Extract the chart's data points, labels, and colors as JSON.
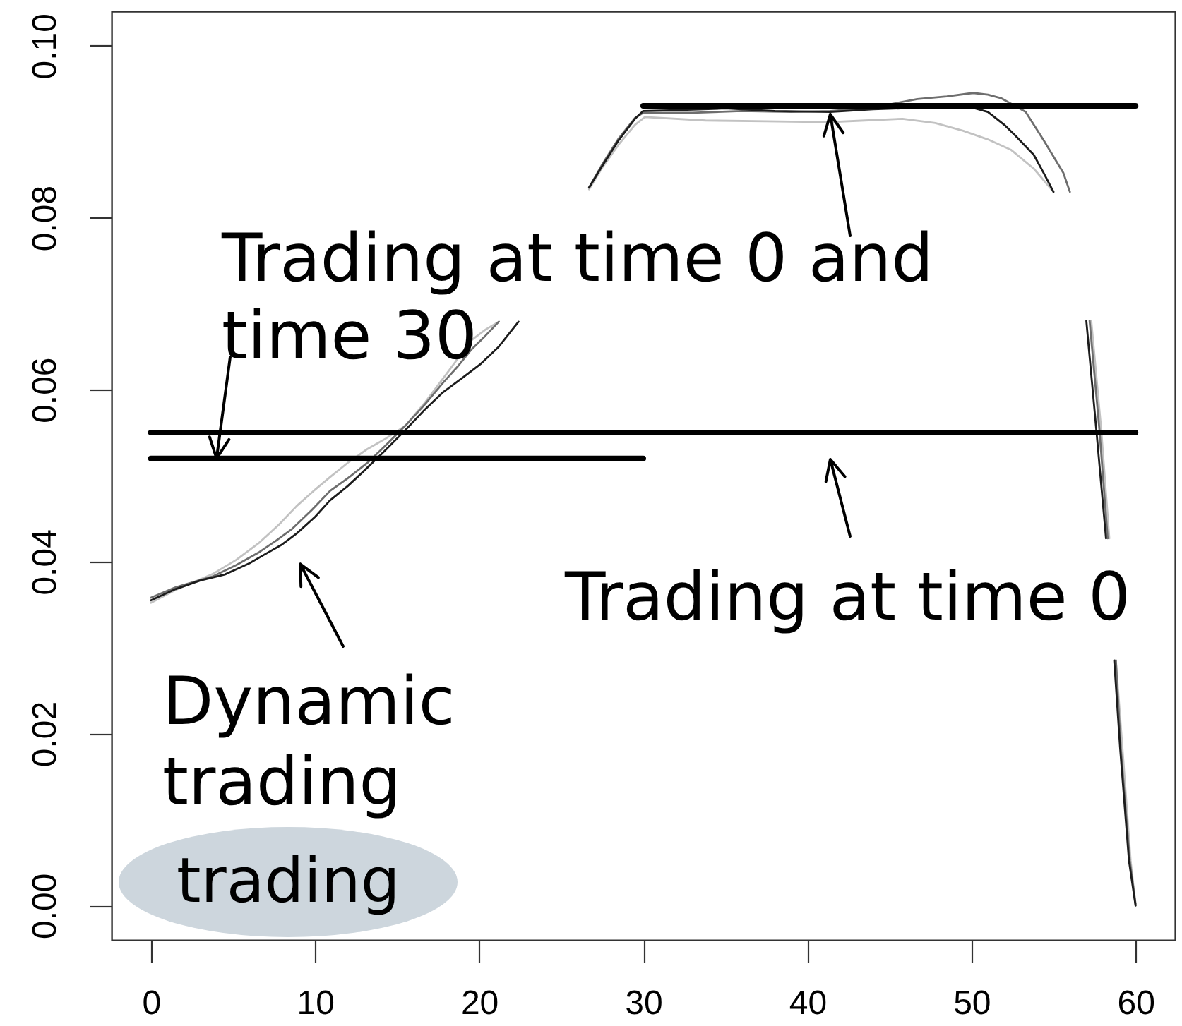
{
  "chart_data": {
    "type": "line",
    "xlim": [
      -2.4,
      62.4
    ],
    "ylim": [
      -0.004,
      0.104
    ],
    "xticks": [
      0,
      10,
      20,
      30,
      40,
      50,
      60
    ],
    "yticks": [
      {
        "value": 0,
        "label": "0.00"
      },
      0.02,
      0.04,
      0.06,
      0.08,
      {
        "value": 0.1,
        "label": "0.10"
      }
    ],
    "series": [
      {
        "color": "#c2c2c2",
        "x": [
          0,
          1.5,
          3.8,
          5.2,
          6.6,
          7.8,
          8.9,
          9.9,
          10.9,
          12,
          13.2,
          14.3,
          15.5,
          16.7,
          17.8,
          18.7,
          19.5,
          20.4,
          21.2,
          24,
          26.7,
          27.5,
          28.5,
          29.5,
          30.1,
          33.8,
          37.5,
          41.3,
          43.5,
          45.8,
          47.8,
          49.5,
          51,
          52.4,
          53.8,
          55,
          56,
          57.3,
          57.9,
          58.4,
          58.6,
          58.8,
          59.2,
          59.7,
          60
        ],
        "values": [
          0.0352,
          0.0367,
          0.0386,
          0.0402,
          0.0422,
          0.0443,
          0.0465,
          0.0482,
          0.0498,
          0.0515,
          0.0531,
          0.0543,
          0.0558,
          0.0585,
          0.0613,
          0.0636,
          0.0657,
          0.067,
          0.0679,
          null,
          0.0833,
          0.0858,
          0.0885,
          0.0908,
          0.0917,
          0.0913,
          0.0912,
          0.0911,
          0.0913,
          0.0915,
          0.091,
          0.0901,
          0.0891,
          0.0879,
          0.0857,
          0.083,
          null,
          0.068,
          0.0555,
          0.0427,
          null,
          0.0285,
          0.0183,
          0.0052,
          0
        ]
      },
      {
        "color": "#6e6e6e",
        "x": [
          0,
          1.5,
          3.8,
          5.2,
          6.6,
          7.6,
          8.6,
          9.8,
          10.9,
          12,
          13.2,
          14.3,
          15.5,
          16.7,
          17.8,
          18.7,
          19.5,
          20.4,
          21.2,
          24,
          26.7,
          27.5,
          28.5,
          29.5,
          30,
          33,
          36,
          39,
          41.4,
          44,
          46.7,
          48.5,
          50.1,
          51,
          51.8,
          53.3,
          54.4,
          55.6,
          56,
          56.5,
          57.2,
          57.8,
          58.3,
          58.5,
          58.8,
          59.1,
          59.65,
          60
        ],
        "values": [
          0.0358,
          0.037,
          0.0383,
          0.0396,
          0.0411,
          0.0424,
          0.0438,
          0.046,
          0.0482,
          0.0497,
          0.0515,
          0.0535,
          0.0558,
          0.0583,
          0.0608,
          0.0627,
          0.0646,
          0.0663,
          0.0679,
          null,
          0.0835,
          0.0862,
          0.0892,
          0.0916,
          0.0922,
          0.0922,
          0.0924,
          0.0923,
          0.0924,
          0.0928,
          0.0938,
          0.0941,
          0.0945,
          0.0943,
          0.0939,
          0.0923,
          0.089,
          0.0852,
          0.083,
          null,
          0.068,
          0.0553,
          0.0427,
          null,
          0.0285,
          0.0183,
          0.0052,
          0.0002
        ]
      },
      {
        "color": "#1c1c1c",
        "x": [
          0,
          1.5,
          3,
          4.5,
          5.2,
          6,
          6.9,
          8,
          8.9,
          10,
          10.9,
          12,
          12.9,
          14.2,
          15.5,
          16.6,
          17.8,
          19,
          20.1,
          21.2,
          22.4,
          24.5,
          26.7,
          27.5,
          28.5,
          29.5,
          30,
          32,
          35,
          38,
          41.4,
          44,
          47,
          49.5,
          51,
          52,
          52.7,
          53.8,
          54.4,
          55,
          56,
          57,
          57.6,
          58.2,
          58.4,
          58.7,
          59.06,
          59.6,
          60
        ],
        "values": [
          0.0355,
          0.0368,
          0.0378,
          0.0385,
          0.0391,
          0.0398,
          0.0408,
          0.042,
          0.0433,
          0.0452,
          0.0471,
          0.0488,
          0.0504,
          0.0528,
          0.0553,
          0.0575,
          0.0597,
          0.0614,
          0.063,
          0.065,
          0.0679,
          null,
          0.0835,
          0.086,
          0.089,
          0.0915,
          0.0924,
          0.0925,
          0.0927,
          0.0924,
          0.0923,
          0.0926,
          0.0928,
          0.0931,
          0.0923,
          0.0908,
          0.0895,
          0.0873,
          0.0852,
          0.083,
          null,
          0.068,
          0.0555,
          0.0427,
          null,
          0.0285,
          0.0183,
          0.0052,
          0
        ]
      },
      {
        "color": "#000000",
        "x": [
          0,
          60
        ],
        "values": [
          0.055,
          0.055
        ]
      },
      {
        "color": "#000000",
        "x": [
          0,
          30
        ],
        "values": [
          0.052,
          0.052
        ]
      },
      {
        "color": "#000000",
        "x": [
          30,
          60
        ],
        "values": [
          0.093,
          0.093
        ]
      }
    ],
    "annotations": [
      {
        "text": "Trading at time 0 and time 30",
        "x": 4,
        "y": 0.052
      },
      {
        "text": "Trading at time 0",
        "x": 41.4,
        "y": 0.055
      },
      {
        "text": "Dynamic trading",
        "x": 9.1,
        "y": 0.043
      },
      "trading"
    ]
  }
}
